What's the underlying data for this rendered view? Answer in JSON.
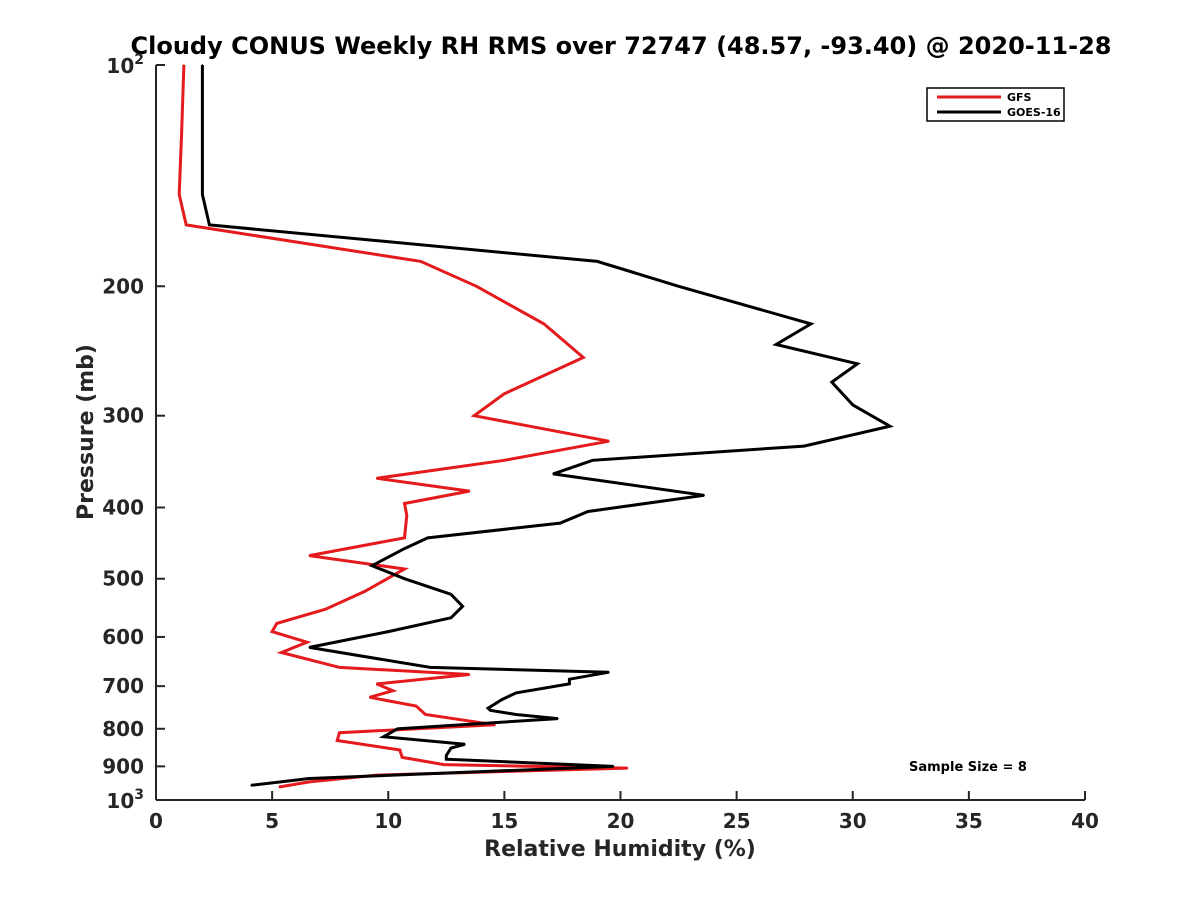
{
  "chart_data": {
    "type": "line",
    "title": "Cloudy CONUS Weekly RH RMS over 72747 (48.57, -93.40) @ 2020-11-28",
    "xlabel": "Relative Humidity (%)",
    "ylabel": "Pressure (mb)",
    "xlim": [
      0,
      40
    ],
    "ylim": [
      100,
      1000
    ],
    "y_scale": "log",
    "y_reversed": true,
    "xticks": [
      0,
      5,
      10,
      15,
      20,
      25,
      30,
      35,
      40
    ],
    "yticks": [
      {
        "value": 100,
        "base": "10",
        "exp": "2"
      },
      {
        "value": 200,
        "label": "200"
      },
      {
        "value": 300,
        "label": "300"
      },
      {
        "value": 400,
        "label": "400"
      },
      {
        "value": 500,
        "label": "500"
      },
      {
        "value": 600,
        "label": "600"
      },
      {
        "value": 700,
        "label": "700"
      },
      {
        "value": 800,
        "label": "800"
      },
      {
        "value": 900,
        "label": "900"
      },
      {
        "value": 1000,
        "base": "10",
        "exp": "3"
      }
    ],
    "legend": {
      "placement": "top-right"
    },
    "annotation": "Sample Size = 8",
    "series": [
      {
        "name": "GFS",
        "color": "#e41a1c",
        "points": [
          [
            1.2,
            100
          ],
          [
            1.1,
            125
          ],
          [
            1.0,
            150
          ],
          [
            1.3,
            165
          ],
          [
            11.4,
            185
          ],
          [
            13.8,
            200
          ],
          [
            16.7,
            225
          ],
          [
            18.4,
            250
          ],
          [
            15.0,
            280
          ],
          [
            13.7,
            300
          ],
          [
            19.5,
            325
          ],
          [
            15.0,
            345
          ],
          [
            9.5,
            365
          ],
          [
            13.5,
            380
          ],
          [
            10.7,
            395
          ],
          [
            10.8,
            410
          ],
          [
            10.7,
            440
          ],
          [
            6.6,
            465
          ],
          [
            10.7,
            485
          ],
          [
            9.0,
            520
          ],
          [
            7.3,
            550
          ],
          [
            5.2,
            575
          ],
          [
            5.0,
            590
          ],
          [
            6.5,
            610
          ],
          [
            5.4,
            630
          ],
          [
            7.9,
            660
          ],
          [
            13.5,
            675
          ],
          [
            9.5,
            695
          ],
          [
            10.2,
            710
          ],
          [
            9.2,
            725
          ],
          [
            11.2,
            745
          ],
          [
            11.6,
            765
          ],
          [
            14.6,
            790
          ],
          [
            7.9,
            810
          ],
          [
            7.8,
            830
          ],
          [
            10.5,
            855
          ],
          [
            10.6,
            875
          ],
          [
            12.4,
            895
          ],
          [
            20.3,
            905
          ],
          [
            9.5,
            925
          ],
          [
            6.6,
            945
          ],
          [
            5.3,
            960
          ]
        ]
      },
      {
        "name": "GOES-16",
        "color": "#000000",
        "points": [
          [
            2.0,
            100
          ],
          [
            2.0,
            125
          ],
          [
            2.0,
            150
          ],
          [
            2.3,
            165
          ],
          [
            19.0,
            185
          ],
          [
            22.5,
            200
          ],
          [
            28.2,
            225
          ],
          [
            26.7,
            240
          ],
          [
            30.2,
            255
          ],
          [
            29.1,
            270
          ],
          [
            30.0,
            290
          ],
          [
            31.6,
            310
          ],
          [
            27.9,
            330
          ],
          [
            18.8,
            345
          ],
          [
            17.1,
            360
          ],
          [
            23.6,
            385
          ],
          [
            18.6,
            405
          ],
          [
            17.4,
            420
          ],
          [
            11.7,
            440
          ],
          [
            10.7,
            455
          ],
          [
            9.3,
            480
          ],
          [
            10.7,
            500
          ],
          [
            12.7,
            525
          ],
          [
            13.2,
            545
          ],
          [
            12.7,
            565
          ],
          [
            10.0,
            590
          ],
          [
            6.6,
            620
          ],
          [
            11.8,
            660
          ],
          [
            19.5,
            670
          ],
          [
            17.8,
            685
          ],
          [
            17.8,
            695
          ],
          [
            15.5,
            715
          ],
          [
            14.9,
            730
          ],
          [
            14.3,
            750
          ],
          [
            14.4,
            755
          ],
          [
            15.5,
            765
          ],
          [
            17.3,
            775
          ],
          [
            10.4,
            800
          ],
          [
            9.8,
            820
          ],
          [
            13.3,
            840
          ],
          [
            12.7,
            850
          ],
          [
            12.5,
            870
          ],
          [
            12.5,
            880
          ],
          [
            19.7,
            900
          ],
          [
            6.6,
            935
          ],
          [
            4.1,
            955
          ]
        ]
      }
    ]
  }
}
